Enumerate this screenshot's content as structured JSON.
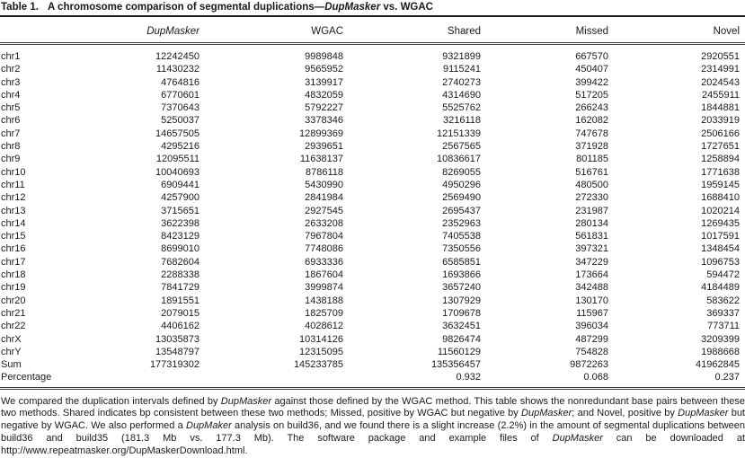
{
  "colors": {
    "background": "#ffffff",
    "text": "#1a1a1a",
    "rule": "#1b1b1b"
  },
  "title": {
    "label": "Table 1.",
    "text_before": "A chromosome comparison of segmental duplications—",
    "italic_part": "DupMasker",
    "text_after": " vs. WGAC"
  },
  "table": {
    "headers": [
      "",
      "DupMasker",
      "WGAC",
      "Shared",
      "Missed",
      "Novel"
    ],
    "rows": [
      {
        "label": "chr1",
        "values": [
          "12242450",
          "9989848",
          "9321899",
          "667570",
          "2920551"
        ]
      },
      {
        "label": "chr2",
        "values": [
          "11430232",
          "9565952",
          "9115241",
          "450407",
          "2314991"
        ]
      },
      {
        "label": "chr3",
        "values": [
          "4764816",
          "3139917",
          "2740273",
          "399422",
          "2024543"
        ]
      },
      {
        "label": "chr4",
        "values": [
          "6770601",
          "4832059",
          "4314690",
          "517205",
          "2455911"
        ]
      },
      {
        "label": "chr5",
        "values": [
          "7370643",
          "5792227",
          "5525762",
          "266243",
          "1844881"
        ]
      },
      {
        "label": "chr6",
        "values": [
          "5250037",
          "3378346",
          "3216118",
          "162082",
          "2033919"
        ]
      },
      {
        "label": "chr7",
        "values": [
          "14657505",
          "12899369",
          "12151339",
          "747678",
          "2506166"
        ]
      },
      {
        "label": "chr8",
        "values": [
          "4295216",
          "2939651",
          "2567565",
          "371928",
          "1727651"
        ]
      },
      {
        "label": "chr9",
        "values": [
          "12095511",
          "11638137",
          "10836617",
          "801185",
          "1258894"
        ]
      },
      {
        "label": "chr10",
        "values": [
          "10040693",
          "8786118",
          "8269055",
          "516761",
          "1771638"
        ]
      },
      {
        "label": "chr11",
        "values": [
          "6909441",
          "5430990",
          "4950296",
          "480500",
          "1959145"
        ]
      },
      {
        "label": "chr12",
        "values": [
          "4257900",
          "2841984",
          "2569490",
          "272330",
          "1688410"
        ]
      },
      {
        "label": "chr13",
        "values": [
          "3715651",
          "2927545",
          "2695437",
          "231987",
          "1020214"
        ]
      },
      {
        "label": "chr14",
        "values": [
          "3622398",
          "2633208",
          "2352963",
          "280134",
          "1269435"
        ]
      },
      {
        "label": "chr15",
        "values": [
          "8423129",
          "7967804",
          "7405538",
          "561831",
          "1017591"
        ]
      },
      {
        "label": "chr16",
        "values": [
          "8699010",
          "7748086",
          "7350556",
          "397321",
          "1348454"
        ]
      },
      {
        "label": "chr17",
        "values": [
          "7682604",
          "6933336",
          "6585851",
          "347229",
          "1096753"
        ]
      },
      {
        "label": "chr18",
        "values": [
          "2288338",
          "1867604",
          "1693866",
          "173664",
          "594472"
        ]
      },
      {
        "label": "chr19",
        "values": [
          "7841729",
          "3999874",
          "3657240",
          "342488",
          "4184489"
        ]
      },
      {
        "label": "chr20",
        "values": [
          "1891551",
          "1438188",
          "1307929",
          "130170",
          "583622"
        ]
      },
      {
        "label": "chr21",
        "values": [
          "2079015",
          "1825709",
          "1709678",
          "115967",
          "369337"
        ]
      },
      {
        "label": "chr22",
        "values": [
          "4406162",
          "4028612",
          "3632451",
          "396034",
          "773711"
        ]
      },
      {
        "label": "chrX",
        "values": [
          "13035873",
          "10314126",
          "9826474",
          "487299",
          "3209399"
        ]
      },
      {
        "label": "chrY",
        "values": [
          "13548797",
          "12315095",
          "11560129",
          "754828",
          "1988668"
        ]
      },
      {
        "label": "Sum",
        "values": [
          "177319302",
          "145233785",
          "135356457",
          "9872263",
          "41962845"
        ]
      },
      {
        "label": "Percentage",
        "values": [
          "",
          "",
          "0.932",
          "0.068",
          "0.237"
        ]
      }
    ]
  },
  "footnote": {
    "segments": [
      {
        "text": "We compared the duplication intervals defined by ",
        "italic": false
      },
      {
        "text": "DupMasker",
        "italic": true
      },
      {
        "text": " against those defined by the WGAC method. This table shows the nonredundant base pairs between these two methods. Shared indicates bp consistent between these two methods; Missed, positive by WGAC but negative by ",
        "italic": false
      },
      {
        "text": "DupMasker",
        "italic": true
      },
      {
        "text": "; and Novel, positive by ",
        "italic": false
      },
      {
        "text": "DupMasker",
        "italic": true
      },
      {
        "text": " but negative by WGAC. We also performed a ",
        "italic": false
      },
      {
        "text": "DupMaker",
        "italic": true
      },
      {
        "text": " analysis on build36, and we found there is a slight increase (2.2%) in the amount of segmental duplications between build36 and build35 (181.3 Mb vs. 177.3 Mb). The software package and example files of ",
        "italic": false
      },
      {
        "text": "DupMasker",
        "italic": true
      },
      {
        "text": " can be downloaded at ",
        "italic": false
      },
      {
        "text": "http://www.repeatmasker.org/DupMaskerDownload.html.",
        "italic": false,
        "name": "download-url"
      }
    ]
  }
}
